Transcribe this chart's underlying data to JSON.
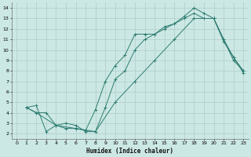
{
  "xlabel": "Humidex (Indice chaleur)",
  "bg_color": "#cce8e4",
  "line_color": "#2e7d72",
  "grid_color": "#b0ccc9",
  "xlim": [
    -0.5,
    23.5
  ],
  "ylim": [
    1.5,
    14.5
  ],
  "xticks": [
    0,
    1,
    2,
    3,
    4,
    5,
    6,
    7,
    8,
    9,
    10,
    11,
    12,
    13,
    14,
    15,
    16,
    17,
    18,
    19,
    20,
    21,
    22,
    23
  ],
  "yticks": [
    2,
    3,
    4,
    5,
    6,
    7,
    8,
    9,
    10,
    11,
    12,
    13,
    14
  ],
  "series1_x": [
    1,
    2,
    3,
    4,
    5,
    6,
    7,
    8,
    9,
    10,
    11,
    12,
    13,
    14,
    15,
    16,
    17,
    18,
    19,
    20,
    21,
    22,
    23
  ],
  "series1_y": [
    4.5,
    4.7,
    2.2,
    2.8,
    2.5,
    2.5,
    2.3,
    4.3,
    7.0,
    8.5,
    9.5,
    11.5,
    11.5,
    11.5,
    12.2,
    12.5,
    13.2,
    14.0,
    13.5,
    13.0,
    10.8,
    9.3,
    8.0
  ],
  "series2_x": [
    1,
    2,
    3,
    4,
    5,
    6,
    7,
    8,
    9,
    10,
    11,
    12,
    13,
    14,
    15,
    16,
    17,
    18,
    19,
    20,
    21,
    22,
    23
  ],
  "series2_y": [
    4.5,
    4.0,
    4.0,
    2.8,
    3.0,
    2.8,
    2.2,
    2.2,
    4.5,
    7.2,
    8.0,
    10.0,
    11.0,
    11.5,
    12.0,
    12.5,
    13.0,
    13.5,
    13.0,
    13.0,
    11.0,
    9.3,
    7.8
  ],
  "series3_x": [
    1,
    2,
    4,
    6,
    8,
    10,
    12,
    14,
    16,
    18,
    20,
    22,
    23
  ],
  "series3_y": [
    4.5,
    4.0,
    2.8,
    2.5,
    2.2,
    5.0,
    7.0,
    9.0,
    11.0,
    13.0,
    13.0,
    9.0,
    8.0
  ]
}
